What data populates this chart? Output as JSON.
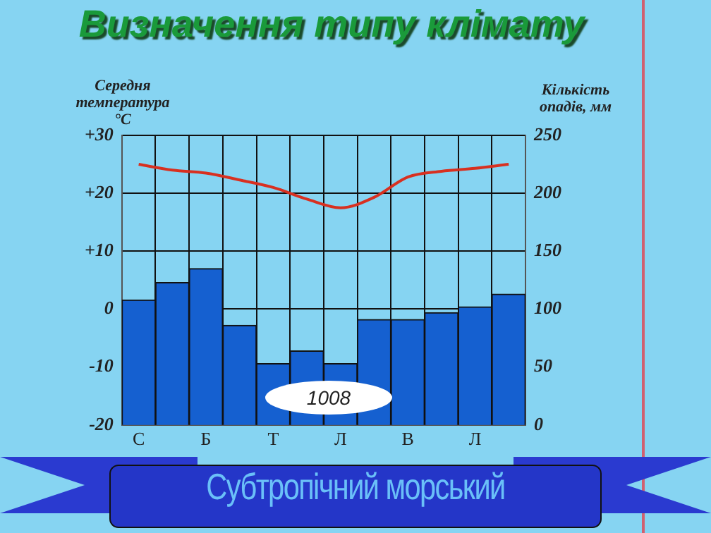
{
  "chart_data": {
    "type": "bar",
    "title": "Визначення  типу  клімату",
    "subtitle": "Субтропічний  морський",
    "ylabel": "Середня температура °C",
    "y2label": "Кількість опадів, мм",
    "annotations": [
      "1008"
    ],
    "categories": [
      "С",
      null,
      "Б",
      null,
      "Т",
      null,
      "Л",
      null,
      "В",
      null,
      "Л",
      null
    ],
    "series": [
      {
        "axis": "y2",
        "color": "#1560d0",
        "values": [
          108,
          123,
          135,
          86,
          53,
          64,
          53,
          91,
          91,
          97,
          102,
          113
        ]
      },
      {
        "type": "line",
        "axis": "y",
        "color": "#d83020",
        "values": [
          25,
          24,
          23.5,
          22.3,
          21,
          19,
          17.5,
          19.3,
          22.8,
          23.8,
          24.3,
          25
        ]
      }
    ],
    "ylim": [
      -20,
      30
    ],
    "yticks": [
      {
        "value": -20,
        "label": "-20"
      },
      {
        "value": -10,
        "label": "-10"
      },
      0,
      {
        "value": 10,
        "label": "+10"
      },
      {
        "value": 20,
        "label": "+20"
      },
      {
        "value": 30,
        "label": "+30"
      }
    ],
    "y2lim": [
      0,
      250
    ],
    "y2ticks": [
      0,
      50,
      100,
      150,
      200,
      250
    ],
    "grid": true,
    "legend": false,
    "marker": "none",
    "line_style": "solid"
  }
}
